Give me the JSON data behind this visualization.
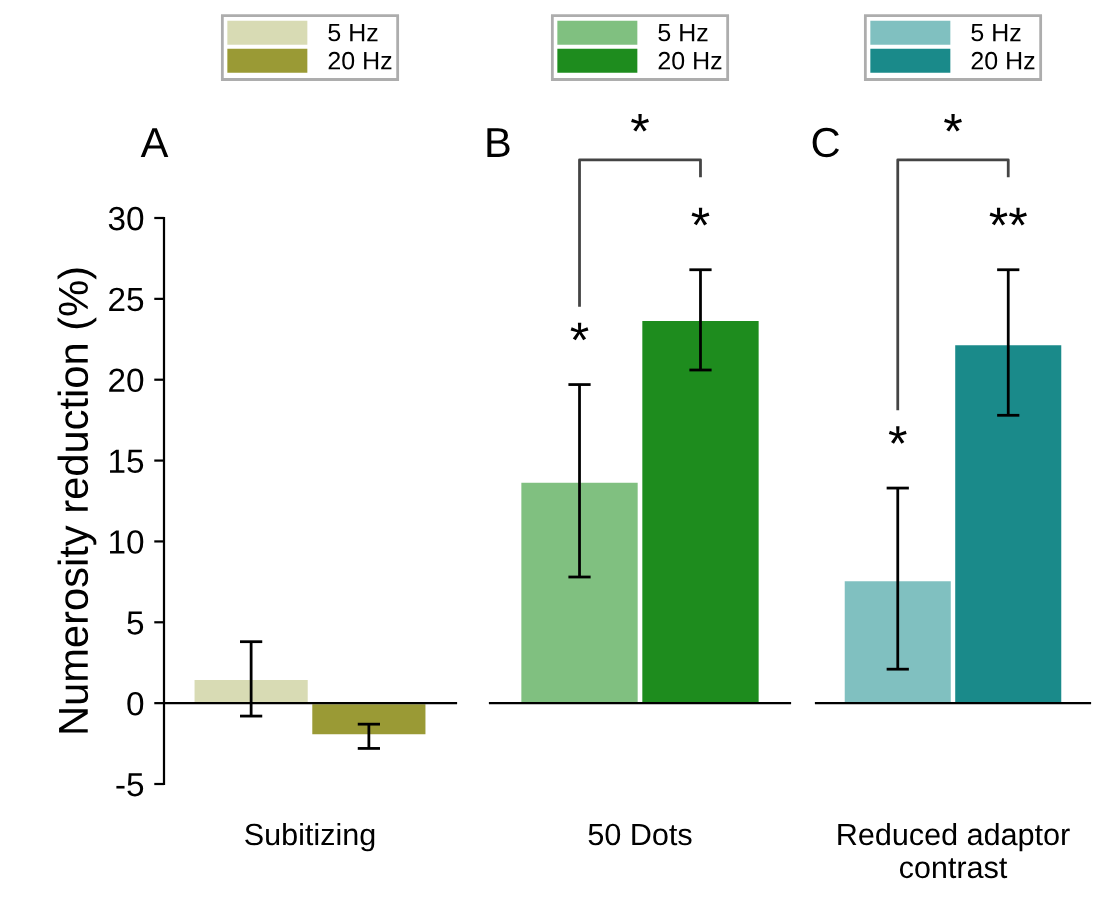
{
  "chart_data": [
    {
      "type": "bar",
      "title": "A",
      "ylabel": "Numerosity reduction (%)",
      "categories": [
        "Subitizing"
      ],
      "ylim": [
        -5,
        30
      ],
      "yticks": [
        -5,
        0,
        5,
        10,
        15,
        20,
        25,
        30
      ],
      "legend": "top",
      "series": [
        {
          "name": "5 Hz",
          "color": "#d8dbb4",
          "values": [
            1.5
          ],
          "errors": [
            [
              -0.8,
              3.8
            ]
          ]
        },
        {
          "name": "20 Hz",
          "color": "#9a9a35",
          "values": [
            -2.0
          ],
          "errors": [
            [
              -2.8,
              -1.3
            ]
          ]
        }
      ]
    },
    {
      "type": "bar",
      "title": "B",
      "categories": [
        "50 Dots"
      ],
      "ylim": [
        -5,
        30
      ],
      "tick_labels": "x",
      "legend": "top",
      "series": [
        {
          "name": "5 Hz",
          "color": "#80c080",
          "values": [
            13.7
          ],
          "errors": [
            [
              7.8,
              19.7
            ]
          ]
        },
        {
          "name": "20 Hz",
          "color": "#1e8c1e",
          "values": [
            23.7
          ],
          "errors": [
            [
              20.6,
              26.8
            ]
          ]
        }
      ],
      "annotations": [
        "*",
        "*",
        "*"
      ]
    },
    {
      "type": "bar",
      "title": "C",
      "categories": [
        "Reduced adaptor\ncontrast"
      ],
      "ylim": [
        -5,
        30
      ],
      "tick_labels": "x",
      "legend": "top",
      "series": [
        {
          "name": "5 Hz",
          "color": "#80c0c0",
          "values": [
            7.6
          ],
          "errors": [
            [
              2.1,
              13.3
            ]
          ]
        },
        {
          "name": "20 Hz",
          "color": "#1a8a8a",
          "values": [
            22.2
          ],
          "errors": [
            [
              17.8,
              26.8
            ]
          ]
        }
      ],
      "annotations": [
        "*",
        "**",
        "*"
      ]
    }
  ]
}
